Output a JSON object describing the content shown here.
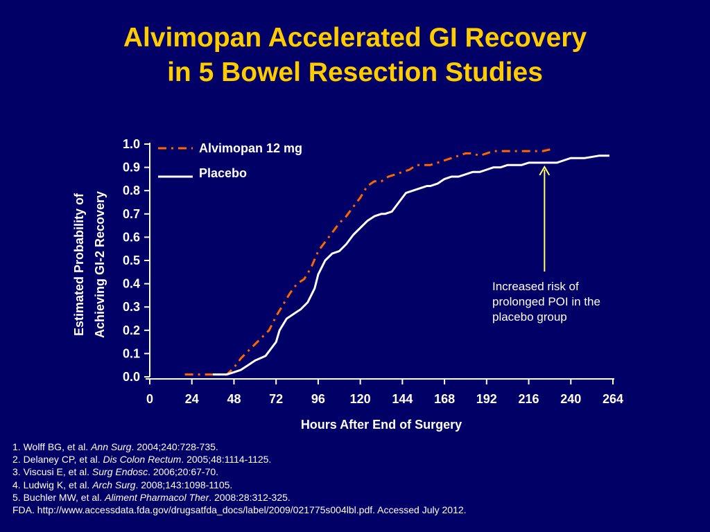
{
  "title": {
    "line1": "Alvimopan Accelerated GI Recovery",
    "line2": "in 5 Bowel Resection Studies"
  },
  "colors": {
    "background": "#000066",
    "title": "#ffcc00",
    "alvimopan": "#ff6600",
    "placebo": "#ffffff",
    "arrow": "#ffff66"
  },
  "chart_data": {
    "type": "line",
    "xlabel": "Hours After End of Surgery",
    "ylabel_line1": "Estimated Probability of",
    "ylabel_line2": "Achieving GI-2 Recovery",
    "xlim": [
      0,
      264
    ],
    "ylim": [
      0,
      1.0
    ],
    "x_ticks": [
      "0",
      "24",
      "48",
      "72",
      "96",
      "120",
      "144",
      "168",
      "192",
      "216",
      "240",
      "264"
    ],
    "y_ticks": [
      "0.0",
      "0.1",
      "0.2",
      "0.3",
      "0.4",
      "0.5",
      "0.6",
      "0.7",
      "0.8",
      "0.9",
      "1.0"
    ],
    "grid": false,
    "legend_position": "top-left",
    "series": [
      {
        "name": "Alvimopan 12 mg",
        "style": "dash-dot",
        "x": [
          20,
          28,
          36,
          44,
          48,
          52,
          56,
          60,
          64,
          68,
          72,
          76,
          80,
          84,
          88,
          92,
          96,
          100,
          104,
          108,
          112,
          116,
          120,
          124,
          128,
          132,
          136,
          140,
          144,
          148,
          152,
          156,
          160,
          164,
          168,
          172,
          176,
          180,
          184,
          188,
          192,
          196,
          200,
          208,
          216,
          224,
          230
        ],
        "y": [
          0.01,
          0.01,
          0.01,
          0.01,
          0.04,
          0.08,
          0.11,
          0.14,
          0.17,
          0.2,
          0.26,
          0.31,
          0.36,
          0.4,
          0.42,
          0.47,
          0.54,
          0.58,
          0.62,
          0.66,
          0.69,
          0.73,
          0.77,
          0.82,
          0.84,
          0.84,
          0.86,
          0.87,
          0.88,
          0.89,
          0.91,
          0.91,
          0.91,
          0.92,
          0.93,
          0.94,
          0.95,
          0.96,
          0.96,
          0.95,
          0.96,
          0.97,
          0.97,
          0.97,
          0.97,
          0.97,
          0.98
        ]
      },
      {
        "name": "Placebo",
        "style": "solid",
        "x": [
          36,
          40,
          44,
          48,
          52,
          56,
          60,
          66,
          72,
          74,
          78,
          82,
          84,
          86,
          90,
          94,
          96,
          100,
          104,
          108,
          112,
          116,
          120,
          124,
          128,
          132,
          134,
          138,
          142,
          146,
          150,
          154,
          158,
          160,
          164,
          168,
          172,
          176,
          180,
          184,
          188,
          192,
          196,
          200,
          204,
          208,
          212,
          216,
          220,
          224,
          228,
          232,
          236,
          240,
          248,
          256,
          262
        ],
        "y": [
          0.01,
          0.01,
          0.01,
          0.02,
          0.03,
          0.05,
          0.07,
          0.09,
          0.15,
          0.2,
          0.25,
          0.27,
          0.28,
          0.29,
          0.32,
          0.38,
          0.44,
          0.5,
          0.53,
          0.54,
          0.57,
          0.61,
          0.64,
          0.67,
          0.69,
          0.7,
          0.7,
          0.71,
          0.75,
          0.79,
          0.8,
          0.81,
          0.82,
          0.82,
          0.83,
          0.85,
          0.86,
          0.86,
          0.87,
          0.88,
          0.88,
          0.89,
          0.9,
          0.9,
          0.91,
          0.91,
          0.91,
          0.92,
          0.92,
          0.92,
          0.92,
          0.92,
          0.93,
          0.94,
          0.94,
          0.95,
          0.95
        ]
      }
    ],
    "annotation": {
      "lines": [
        "Increased risk of",
        "prolonged POI in the",
        "placebo group"
      ],
      "arrow_target_x": 225,
      "arrow_target_y": 0.92
    }
  },
  "references": [
    {
      "plain": "1. Wolff BG, et al. ",
      "italic": "Ann Surg",
      "rest": ". 2004;240:728-735."
    },
    {
      "plain": "2. Delaney CP, et al. ",
      "italic": "Dis Colon Rectum",
      "rest": ". 2005;48:1114-1125."
    },
    {
      "plain": "3. Viscusi E, et al. ",
      "italic": "Surg Endosc",
      "rest": ". 2006;20:67-70."
    },
    {
      "plain": "4. Ludwig K, et al. ",
      "italic": "Arch Surg",
      "rest": ". 2008;143:1098-1105."
    },
    {
      "plain": "5. Buchler MW, et al. ",
      "italic": "Aliment Pharmacol Ther",
      "rest": ". 2008:28:312-325."
    },
    {
      "plain": "FDA. http://www.accessdata.fda.gov/drugsatfda_docs/label/2009/021775s004lbl.pdf. Accessed July 2012.",
      "italic": "",
      "rest": ""
    }
  ]
}
